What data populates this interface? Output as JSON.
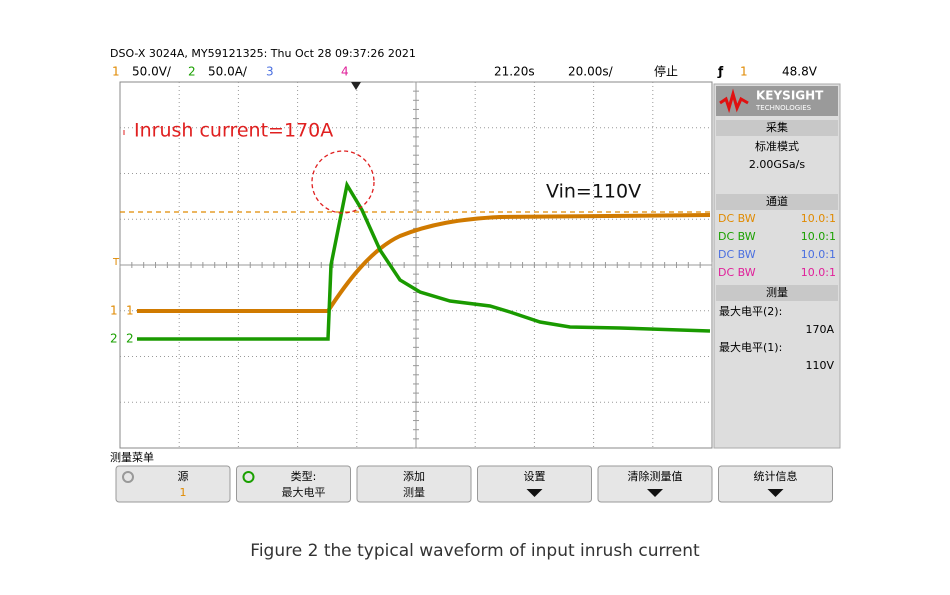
{
  "header": {
    "title": "DSO-X 3024A, MY59121325: Thu Oct 28 09:37:26 2021",
    "status": {
      "ch1": "1",
      "ch1_scale": "50.0V/",
      "ch2": "2",
      "ch2_scale": "50.0A/",
      "ch3": "3",
      "ch4": "4",
      "delay": "21.20s",
      "timebase": "20.00s/",
      "state": "停止",
      "trigger_source": "1",
      "trigger_level": "48.8V"
    }
  },
  "screen": {
    "annotations": {
      "inrush": "Inrush current=170A",
      "vin": "Vin=110V"
    },
    "markers": {
      "trigger": "T",
      "ch1": "1",
      "ch2": "2"
    }
  },
  "panel": {
    "brand": "KEYSIGHT",
    "brand_sub": "TECHNOLOGIES",
    "acquisition": {
      "title": "采集",
      "mode": "标准模式",
      "rate": "2.00GSa/s"
    },
    "channels": {
      "title": "通道",
      "rows": [
        [
          "DC BW",
          "10.0:1"
        ],
        [
          "DC BW",
          "10.0:1"
        ],
        [
          "DC BW",
          "10.0:1"
        ],
        [
          "DC BW",
          "10.0:1"
        ]
      ]
    },
    "measure": {
      "title": "测量",
      "items": [
        [
          "最大电平(2):",
          "170A"
        ],
        [
          "最大电平(1):",
          "110V"
        ]
      ]
    }
  },
  "menu": {
    "title": "测量菜单",
    "softkeys": [
      [
        "源",
        "1"
      ],
      [
        "类型:",
        "最大电平"
      ],
      [
        "添加",
        "测量"
      ],
      [
        "设置"
      ],
      [
        "清除测量值"
      ],
      [
        "统计信息"
      ]
    ]
  },
  "caption": "Figure 2 the typical waveform of input inrush current"
}
